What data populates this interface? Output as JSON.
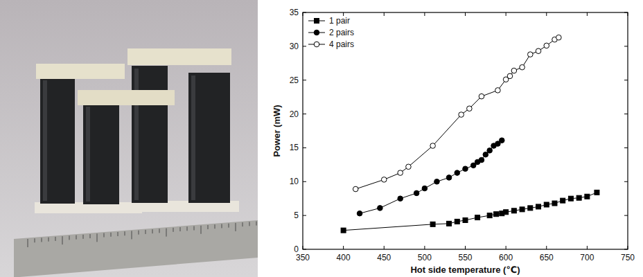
{
  "chart_data": {
    "type": "line",
    "xlabel": "Hot side temperature (℃)",
    "ylabel": "Power (mW)",
    "xlim": [
      350,
      750
    ],
    "xticks": [
      350,
      400,
      450,
      500,
      550,
      600,
      650,
      700,
      750
    ],
    "ylim": [
      0,
      35
    ],
    "yticks": [
      0,
      5,
      10,
      15,
      20,
      25,
      30,
      35
    ],
    "grid": false,
    "legend": "upper left",
    "series": [
      {
        "name": "1 pair",
        "color": "#000000",
        "marker": "square",
        "x": [
          400,
          510,
          530,
          540,
          550,
          565,
          580,
          588,
          595,
          600,
          610,
          620,
          630,
          640,
          650,
          660,
          670,
          680,
          690,
          700,
          712
        ],
        "values": [
          2.8,
          3.7,
          3.8,
          4.1,
          4.3,
          4.7,
          5.0,
          5.2,
          5.3,
          5.5,
          5.7,
          5.9,
          6.1,
          6.3,
          6.6,
          6.8,
          7.2,
          7.5,
          7.6,
          7.8,
          8.4
        ]
      },
      {
        "name": "2 pairs",
        "color": "#000000",
        "marker": "circle",
        "x": [
          420,
          445,
          470,
          490,
          500,
          515,
          530,
          540,
          550,
          560,
          565,
          570,
          575,
          580,
          585,
          590,
          595
        ],
        "values": [
          5.3,
          6.1,
          7.5,
          8.3,
          9.0,
          10.0,
          10.6,
          11.3,
          11.9,
          12.4,
          12.9,
          13.2,
          14.0,
          14.6,
          15.3,
          15.6,
          16.1
        ]
      },
      {
        "name": "4 pairs",
        "color": "#000000",
        "marker": "circle-open",
        "x": [
          415,
          450,
          470,
          480,
          510,
          545,
          555,
          570,
          590,
          600,
          605,
          610,
          620,
          630,
          640,
          650,
          660,
          665
        ],
        "values": [
          8.9,
          10.3,
          11.3,
          12.2,
          15.3,
          19.9,
          20.8,
          22.6,
          23.5,
          25.1,
          25.6,
          26.4,
          26.9,
          28.8,
          29.3,
          30.1,
          31.0,
          31.3
        ]
      }
    ]
  }
}
